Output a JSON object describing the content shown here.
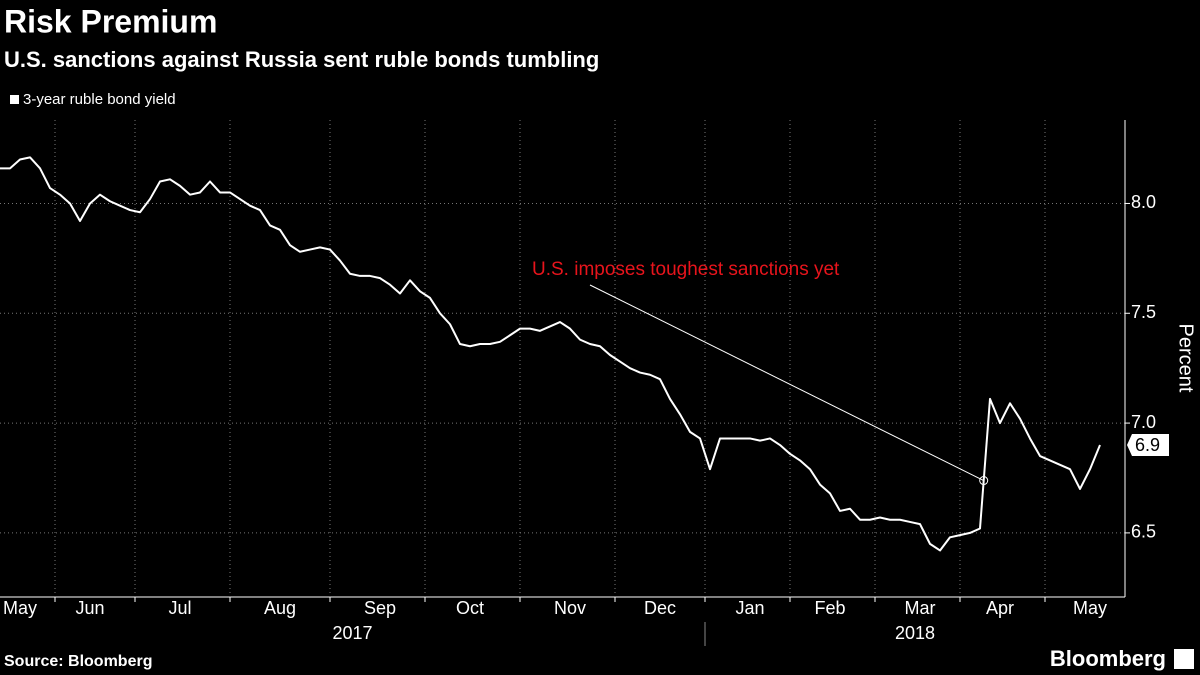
{
  "chart_data": {
    "type": "line",
    "title": "Risk Premium",
    "subtitle": "U.S. sanctions against Russia sent ruble bonds tumbling",
    "y_label": "Percent",
    "annotation": "U.S. imposes toughest sanctions yet",
    "annotation_color": "#e8141c",
    "grid": true,
    "ylim": [
      6.24,
      8.38
    ],
    "yticks": [
      6.5,
      {
        "value": 7,
        "label": "7.0"
      },
      7.5,
      {
        "value": 8,
        "label": "8.0"
      }
    ],
    "years": [
      "2017",
      "2018"
    ],
    "categories": [
      null,
      null,
      "May",
      null,
      null,
      null,
      null,
      null,
      null,
      "Jun",
      null,
      null,
      null,
      null,
      null,
      null,
      null,
      null,
      "Jul",
      null,
      null,
      null,
      null,
      null,
      null,
      null,
      null,
      null,
      "Aug",
      null,
      null,
      null,
      null,
      null,
      null,
      null,
      null,
      null,
      "Sep",
      null,
      null,
      null,
      null,
      null,
      null,
      null,
      null,
      "Oct",
      null,
      null,
      null,
      null,
      null,
      null,
      null,
      null,
      null,
      "Nov",
      null,
      null,
      null,
      null,
      null,
      null,
      null,
      null,
      "Dec",
      null,
      null,
      null,
      null,
      null,
      null,
      null,
      null,
      "Jan",
      null,
      null,
      null,
      null,
      null,
      null,
      null,
      "Feb",
      null,
      null,
      null,
      null,
      null,
      null,
      null,
      null,
      "Mar",
      null,
      null,
      null,
      null,
      null,
      null,
      null,
      "Apr",
      null,
      null,
      null,
      null,
      null,
      null,
      null,
      null,
      "May",
      null
    ],
    "series": [
      {
        "name": "3-year ruble bond yield",
        "color": "#ffffff",
        "values": [
          8.16,
          8.16,
          8.2,
          8.21,
          8.16,
          8.07,
          8.04,
          8.0,
          7.92,
          8.0,
          8.04,
          8.01,
          7.99,
          7.97,
          7.96,
          8.02,
          8.1,
          8.11,
          8.08,
          8.04,
          8.05,
          8.1,
          8.05,
          8.05,
          8.02,
          7.99,
          7.97,
          7.9,
          7.88,
          7.81,
          7.78,
          7.79,
          7.8,
          7.79,
          7.74,
          7.68,
          7.67,
          7.67,
          7.66,
          7.63,
          7.59,
          7.65,
          7.6,
          7.57,
          7.5,
          7.45,
          7.36,
          7.35,
          7.36,
          7.36,
          7.37,
          7.4,
          7.43,
          7.43,
          7.42,
          7.44,
          7.46,
          7.43,
          7.38,
          7.36,
          7.35,
          7.31,
          7.28,
          7.25,
          7.23,
          7.22,
          7.2,
          7.11,
          7.04,
          6.96,
          6.93,
          6.79,
          6.93,
          6.93,
          6.93,
          6.93,
          6.92,
          6.93,
          6.9,
          6.86,
          6.83,
          6.79,
          6.72,
          6.68,
          6.6,
          6.61,
          6.56,
          6.56,
          6.57,
          6.56,
          6.56,
          6.55,
          6.54,
          6.45,
          6.42,
          6.48,
          6.49,
          6.5,
          6.52,
          7.11,
          7.0,
          7.09,
          7.02,
          6.93,
          6.85,
          6.83,
          6.81,
          6.79,
          6.7,
          6.79,
          6.9
        ]
      }
    ]
  },
  "footer": {
    "source": "Source: Bloomberg",
    "brand": "Bloomberg"
  }
}
